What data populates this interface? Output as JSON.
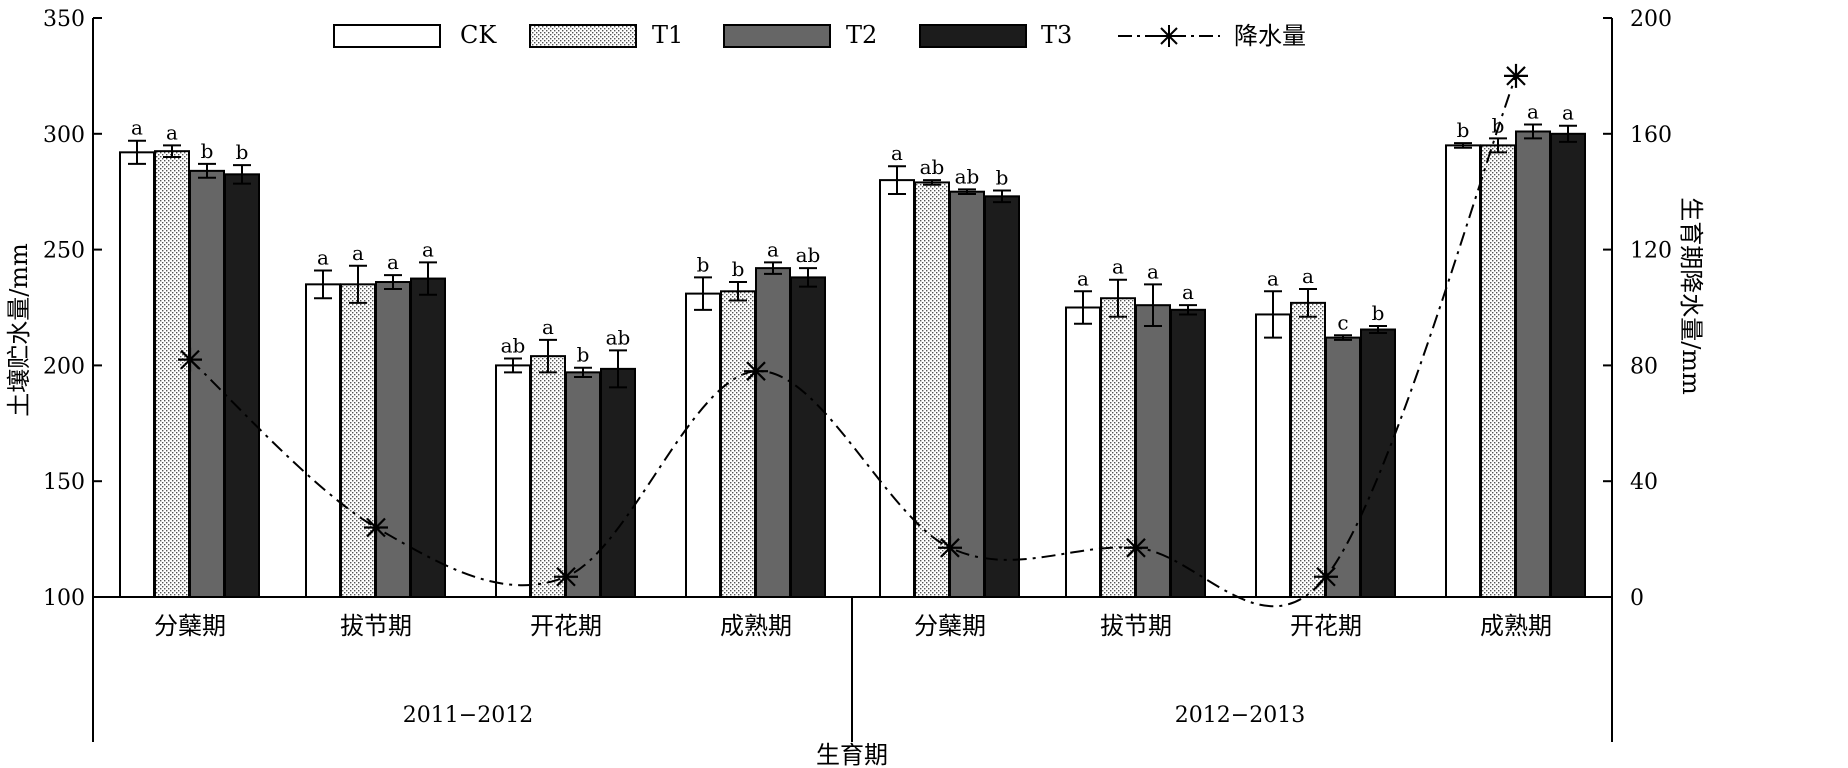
{
  "chart_data": {
    "type": "bar",
    "ylabel": "土壤贮水量/mm",
    "y2label": "生育期降水量/mm",
    "xlabel": "生育期",
    "ylim": [
      100,
      350
    ],
    "yticks": [
      100,
      150,
      200,
      250,
      300,
      350
    ],
    "y2lim": [
      0,
      200
    ],
    "y2ticks": [
      0,
      40,
      80,
      120,
      160,
      200
    ],
    "grid": false,
    "legend_position": "top",
    "years": [
      "2011−2012",
      "2012−2013"
    ],
    "categories": [
      "分蘖期",
      "拔节期",
      "开花期",
      "成熟期",
      "分蘖期",
      "拔节期",
      "开花期",
      "成熟期"
    ],
    "series": [
      {
        "name": "CK",
        "fill": "white",
        "values": [
          292,
          235,
          200,
          231,
          280,
          225,
          222,
          295
        ],
        "errors": [
          5,
          6,
          3,
          7,
          6,
          7,
          10,
          1
        ],
        "letters": [
          "a",
          "a",
          "ab",
          "b",
          "a",
          "a",
          "a",
          "b"
        ]
      },
      {
        "name": "T1",
        "fill": "dotted",
        "values": [
          292.5,
          235,
          204,
          232,
          279,
          229,
          227,
          295
        ],
        "errors": [
          2.5,
          8,
          7,
          4,
          1,
          8,
          6,
          3
        ],
        "letters": [
          "a",
          "a",
          "a",
          "b",
          "ab",
          "a",
          "a",
          "b"
        ]
      },
      {
        "name": "T2",
        "fill": "#666666",
        "values": [
          284,
          236,
          197,
          242,
          275,
          226,
          212,
          301
        ],
        "errors": [
          3,
          3,
          2,
          2.5,
          1,
          9,
          1,
          3
        ],
        "letters": [
          "b",
          "a",
          "b",
          "a",
          "ab",
          "a",
          "c",
          "a"
        ]
      },
      {
        "name": "T3",
        "fill": "#1c1c1c",
        "values": [
          282.5,
          237.5,
          198.5,
          238,
          273,
          224,
          215.5,
          300
        ],
        "errors": [
          4,
          7,
          8,
          4,
          2.5,
          2,
          1.5,
          3.5
        ],
        "letters": [
          "b",
          "a",
          "ab",
          "ab",
          "b",
          "a",
          "b",
          "a"
        ]
      }
    ],
    "precipitation": {
      "name": "降水量",
      "axis": "right",
      "values": [
        82,
        24,
        7,
        78,
        17,
        17,
        7,
        180
      ]
    },
    "colors": {
      "axis": "#000000",
      "t2": "#666666",
      "t3": "#1c1c1c",
      "dots": "#555555"
    }
  }
}
